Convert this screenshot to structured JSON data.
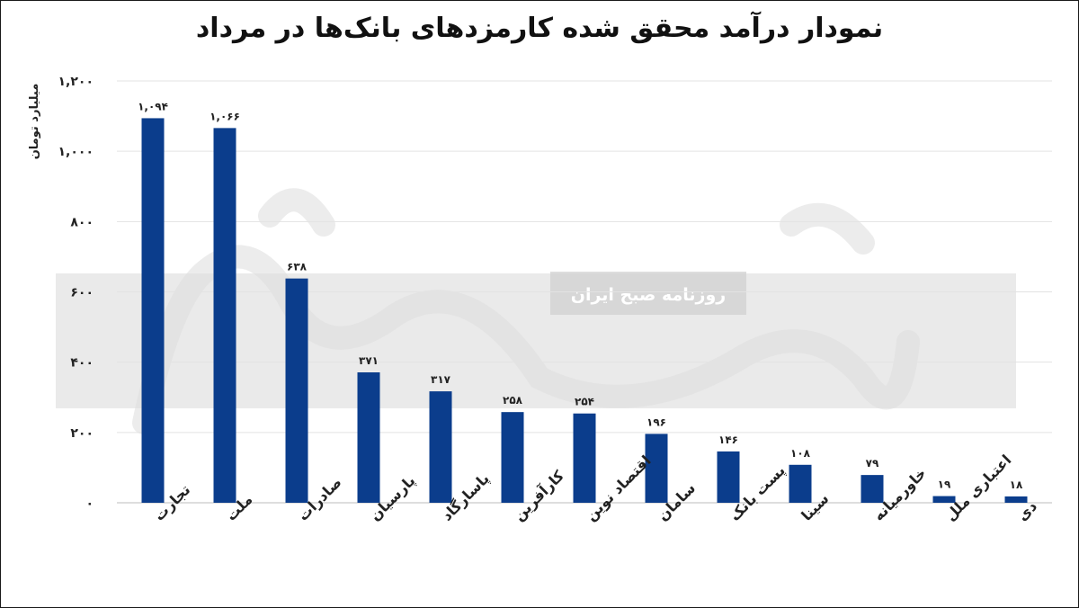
{
  "watermark": {
    "publisher": "روزنامه صبح ایران"
  },
  "chart_data": {
    "type": "bar",
    "title": "نمودار درآمد محقق شده کارمزدهای بانک‌ها در مرداد",
    "ylabel": "میلیارد تومان",
    "xlabel": "",
    "categories": [
      "تجارت",
      "ملت",
      "صادرات",
      "پارسیان",
      "پاسارگاد",
      "کارآفرین",
      "اقتصاد نوین",
      "سامان",
      "پست بانک",
      "سینا",
      "خاورمیانه",
      "اعتباری ملل",
      "دی"
    ],
    "values": [
      1094,
      1066,
      638,
      371,
      317,
      258,
      254,
      196,
      146,
      108,
      79,
      19,
      18
    ],
    "data_labels": [
      "۱,۰۹۴",
      "۱,۰۶۶",
      "۶۳۸",
      "۳۷۱",
      "۳۱۷",
      "۲۵۸",
      "۲۵۴",
      "۱۹۶",
      "۱۴۶",
      "۱۰۸",
      "۷۹",
      "۱۹",
      "۱۸"
    ],
    "ylim": [
      0,
      1200
    ],
    "yticks": [
      0,
      200,
      400,
      600,
      800,
      1000,
      1200
    ],
    "ytick_labels": [
      "۰",
      "۲۰۰",
      "۴۰۰",
      "۶۰۰",
      "۸۰۰",
      "۱,۰۰۰",
      "۱,۲۰۰"
    ],
    "grid": true,
    "bar_color": "#0b3d8c"
  }
}
